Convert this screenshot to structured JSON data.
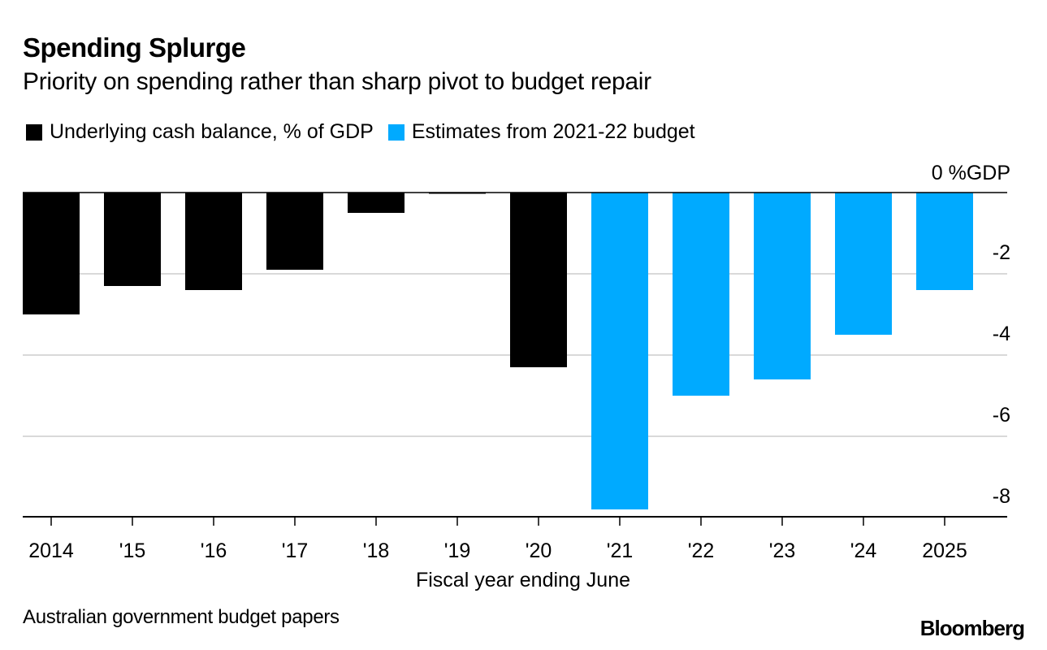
{
  "header": {
    "title": "Spending Splurge",
    "subtitle": "Priority on spending rather than sharp pivot to budget repair"
  },
  "legend": [
    {
      "label": "Underlying cash balance, % of GDP",
      "color": "#000000"
    },
    {
      "label": "Estimates from 2021-22 budget",
      "color": "#00aaff"
    }
  ],
  "footer": {
    "source": "Australian government budget papers",
    "brand": "Bloomberg"
  },
  "chart_data": {
    "type": "bar",
    "title": "Spending Splurge",
    "subtitle": "Priority on spending rather than sharp pivot to budget repair",
    "xlabel": "Fiscal year ending June",
    "ylabel": "%GDP",
    "categories": [
      "2014",
      "'15",
      "'16",
      "'17",
      "'18",
      "'19",
      "'20",
      "'21",
      "'22",
      "'23",
      "'24",
      "2025"
    ],
    "series": [
      {
        "name": "Underlying cash balance, % of GDP",
        "color": "#000000",
        "values": [
          -3.0,
          -2.3,
          -2.4,
          -1.9,
          -0.5,
          0.0,
          -4.3,
          null,
          null,
          null,
          null,
          null
        ]
      },
      {
        "name": "Estimates from 2021-22 budget",
        "color": "#00aaff",
        "values": [
          null,
          null,
          null,
          null,
          null,
          null,
          null,
          -7.8,
          -5.0,
          -4.6,
          -3.5,
          -2.4
        ]
      }
    ],
    "y_ticks": [
      0,
      -2,
      -4,
      -6,
      -8
    ],
    "y_tick_labels": [
      "0 %GDP",
      "-2",
      "-4",
      "-6",
      "-8"
    ],
    "ylim": [
      -8,
      0
    ],
    "grid": true,
    "y_axis_side": "right",
    "legend_position": "top-left"
  }
}
